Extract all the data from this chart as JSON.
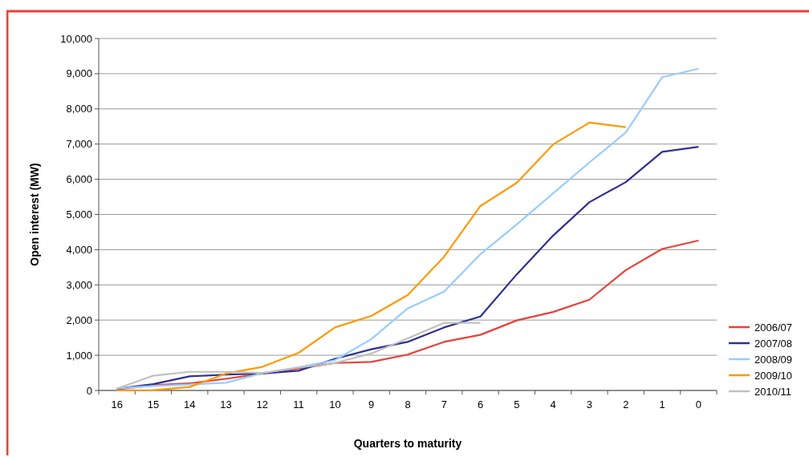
{
  "chart_data": {
    "type": "line",
    "xlabel": "Quarters to maturity",
    "ylabel": "Open interest (MW)",
    "categories": [
      "16",
      "15",
      "14",
      "13",
      "12",
      "11",
      "10",
      "9",
      "8",
      "7",
      "6",
      "5",
      "4",
      "3",
      "2",
      "1",
      "0"
    ],
    "series": [
      {
        "name": "2006/07",
        "color": "#e8413a",
        "values": [
          30,
          150,
          200,
          330,
          480,
          620,
          780,
          810,
          1020,
          1380,
          1580,
          1990,
          2230,
          2580,
          3420,
          4020,
          4260
        ]
      },
      {
        "name": "2007/08",
        "color": "#2e3192",
        "values": [
          50,
          180,
          400,
          450,
          480,
          560,
          900,
          1170,
          1380,
          1790,
          2100,
          3300,
          4400,
          5350,
          5920,
          6780,
          6920
        ]
      },
      {
        "name": "2008/09",
        "color": "#99ccff",
        "values": [
          60,
          130,
          170,
          220,
          490,
          660,
          860,
          1460,
          2330,
          2810,
          3870,
          4720,
          5600,
          6480,
          7330,
          8900,
          9140
        ]
      },
      {
        "name": "2009/10",
        "color": "#ff9900",
        "values": [
          0,
          10,
          100,
          480,
          670,
          1070,
          1790,
          2120,
          2710,
          3800,
          5240,
          5900,
          6990,
          7610,
          7480,
          null,
          null
        ]
      },
      {
        "name": "2010/11",
        "color": "#c0c0c0",
        "values": [
          50,
          420,
          530,
          530,
          500,
          650,
          780,
          1050,
          1480,
          1920,
          1920,
          null,
          null,
          null,
          null,
          null,
          null
        ]
      }
    ],
    "ylim": [
      0,
      10000
    ],
    "yticks": [
      {
        "value": 0,
        "label": "0"
      },
      {
        "value": 1000,
        "label": "1,000"
      },
      {
        "value": 2000,
        "label": "2,000"
      },
      {
        "value": 3000,
        "label": "3,000"
      },
      {
        "value": 4000,
        "label": "4,000"
      },
      {
        "value": 5000,
        "label": "5,000"
      },
      {
        "value": 6000,
        "label": "6,000"
      },
      {
        "value": 7000,
        "label": "7,000"
      },
      {
        "value": 8000,
        "label": "8,000"
      },
      {
        "value": 9000,
        "label": "9,000"
      },
      {
        "value": 10000,
        "label": "10,000"
      }
    ],
    "grid": "y",
    "legend": "right",
    "marker": "none",
    "line_style": "solid"
  }
}
